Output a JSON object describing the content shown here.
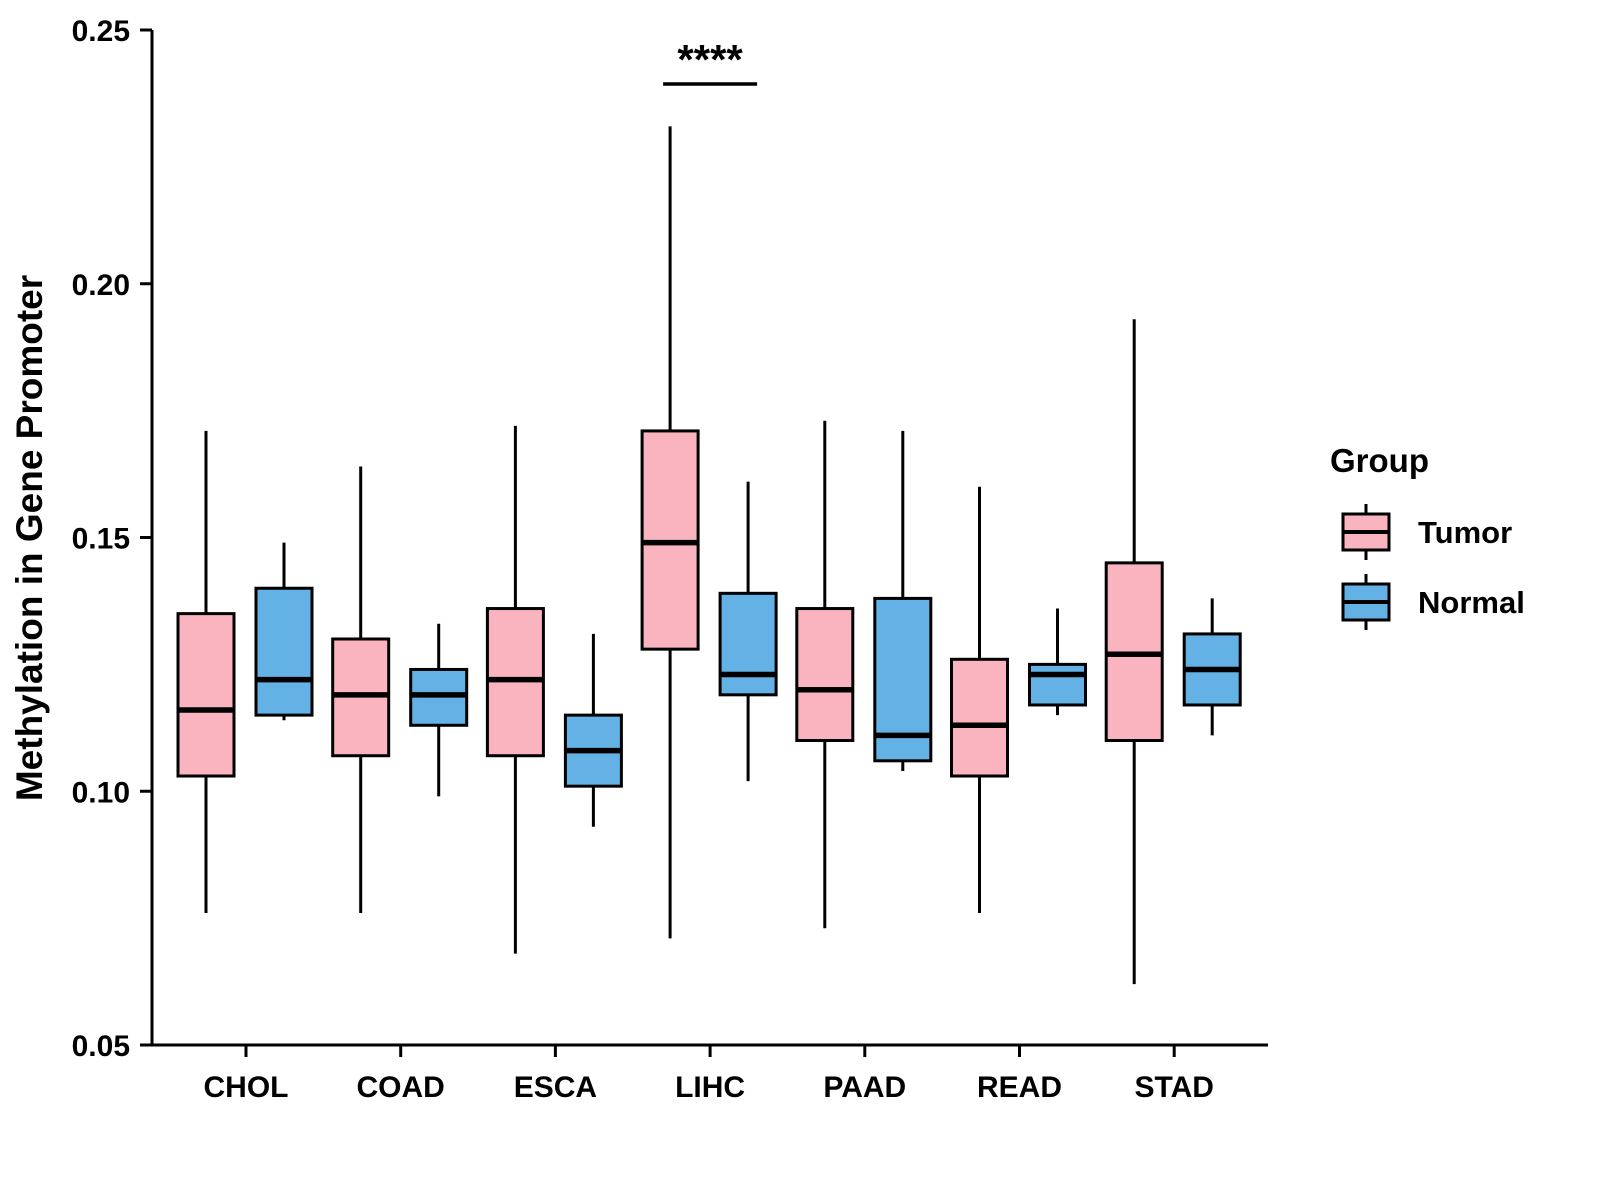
{
  "chart_data": {
    "type": "boxplot",
    "title": "",
    "xlabel": "",
    "ylabel": "Methylation in Gene Promoter",
    "ylim": [
      0.05,
      0.25
    ],
    "yticks": [
      "0.05",
      "0.10",
      "0.15",
      "0.20",
      "0.25"
    ],
    "grid": "off",
    "legend_position": "right",
    "categories": [
      "CHOL",
      "COAD",
      "ESCA",
      "LIHC",
      "PAAD",
      "READ",
      "STAD"
    ],
    "legend": {
      "title": "Group",
      "entries": [
        {
          "label": "Tumor",
          "color": "#F9B4C0"
        },
        {
          "label": "Normal",
          "color": "#63B1E5"
        }
      ]
    },
    "significance": [
      {
        "category": "LIHC",
        "label": "****"
      }
    ],
    "series": [
      {
        "name": "Tumor",
        "color": "#F9B4C0",
        "boxes": [
          {
            "category": "CHOL",
            "whisker_low": 0.076,
            "q1": 0.103,
            "median": 0.116,
            "q3": 0.135,
            "whisker_high": 0.171
          },
          {
            "category": "COAD",
            "whisker_low": 0.076,
            "q1": 0.107,
            "median": 0.119,
            "q3": 0.13,
            "whisker_high": 0.164
          },
          {
            "category": "ESCA",
            "whisker_low": 0.068,
            "q1": 0.107,
            "median": 0.122,
            "q3": 0.136,
            "whisker_high": 0.172
          },
          {
            "category": "LIHC",
            "whisker_low": 0.071,
            "q1": 0.128,
            "median": 0.149,
            "q3": 0.171,
            "whisker_high": 0.231
          },
          {
            "category": "PAAD",
            "whisker_low": 0.073,
            "q1": 0.11,
            "median": 0.12,
            "q3": 0.136,
            "whisker_high": 0.173
          },
          {
            "category": "READ",
            "whisker_low": 0.076,
            "q1": 0.103,
            "median": 0.113,
            "q3": 0.126,
            "whisker_high": 0.16
          },
          {
            "category": "STAD",
            "whisker_low": 0.062,
            "q1": 0.11,
            "median": 0.127,
            "q3": 0.145,
            "whisker_high": 0.193
          }
        ]
      },
      {
        "name": "Normal",
        "color": "#63B1E5",
        "boxes": [
          {
            "category": "CHOL",
            "whisker_low": 0.114,
            "q1": 0.115,
            "median": 0.122,
            "q3": 0.14,
            "whisker_high": 0.149
          },
          {
            "category": "COAD",
            "whisker_low": 0.099,
            "q1": 0.113,
            "median": 0.119,
            "q3": 0.124,
            "whisker_high": 0.133
          },
          {
            "category": "ESCA",
            "whisker_low": 0.093,
            "q1": 0.101,
            "median": 0.108,
            "q3": 0.115,
            "whisker_high": 0.131
          },
          {
            "category": "LIHC",
            "whisker_low": 0.102,
            "q1": 0.119,
            "median": 0.123,
            "q3": 0.139,
            "whisker_high": 0.161
          },
          {
            "category": "PAAD",
            "whisker_low": 0.104,
            "q1": 0.106,
            "median": 0.111,
            "q3": 0.138,
            "whisker_high": 0.171
          },
          {
            "category": "READ",
            "whisker_low": 0.115,
            "q1": 0.117,
            "median": 0.123,
            "q3": 0.125,
            "whisker_high": 0.136
          },
          {
            "category": "STAD",
            "whisker_low": 0.111,
            "q1": 0.117,
            "median": 0.124,
            "q3": 0.131,
            "whisker_high": 0.138
          }
        ]
      }
    ]
  }
}
